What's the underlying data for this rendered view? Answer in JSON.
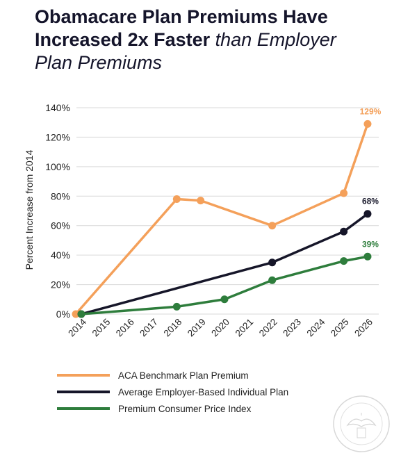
{
  "title": {
    "line1_bold": "Obamacare Plan Premiums Have",
    "line2_bold": "Increased 2x Faster",
    "line2_italic": " than Employer",
    "line3_italic": "Plan Premiums"
  },
  "colors": {
    "aca": "#f4a05a",
    "employer": "#161629",
    "cpi": "#2e7d3c",
    "grid": "#d9d9d9",
    "text": "#222222"
  },
  "chart_data": {
    "type": "line",
    "ylabel": "Percent Increase from 2014",
    "xlabel": "",
    "categories": [
      "2014",
      "2015",
      "2016",
      "2017",
      "2018",
      "2019",
      "2020",
      "2021",
      "2022",
      "2023",
      "2024",
      "2025",
      "2026"
    ],
    "ylim": [
      0,
      140
    ],
    "yticks": [
      0,
      20,
      40,
      60,
      80,
      100,
      120,
      140
    ],
    "ytick_labels": [
      "0%",
      "20%",
      "40%",
      "60%",
      "80%",
      "100%",
      "120%",
      "140%"
    ],
    "grid": true,
    "legend_position": "bottom",
    "series": [
      {
        "name": "ACA Benchmark Plan Premium",
        "color": "#f4a05a",
        "points": [
          [
            2014,
            0
          ],
          [
            2018,
            78
          ],
          [
            2019,
            77
          ],
          [
            2022,
            60
          ],
          [
            2025,
            82
          ],
          [
            2026,
            129
          ]
        ],
        "end_label": "129%"
      },
      {
        "name": "Average Employer-Based Individual Plan",
        "color": "#161629",
        "points": [
          [
            2014,
            0
          ],
          [
            2022,
            35
          ],
          [
            2025,
            56
          ],
          [
            2026,
            68
          ]
        ],
        "end_label": "68%"
      },
      {
        "name": "Premium Consumer Price Index",
        "color": "#2e7d3c",
        "points": [
          [
            2014,
            0
          ],
          [
            2018,
            5
          ],
          [
            2020,
            10
          ],
          [
            2022,
            23
          ],
          [
            2025,
            36
          ],
          [
            2026,
            39
          ]
        ],
        "end_label": "39%"
      }
    ]
  },
  "seal": {
    "icon": "congressional-seal-watermark",
    "text": "SPEAKER OF THE HOUSE"
  }
}
